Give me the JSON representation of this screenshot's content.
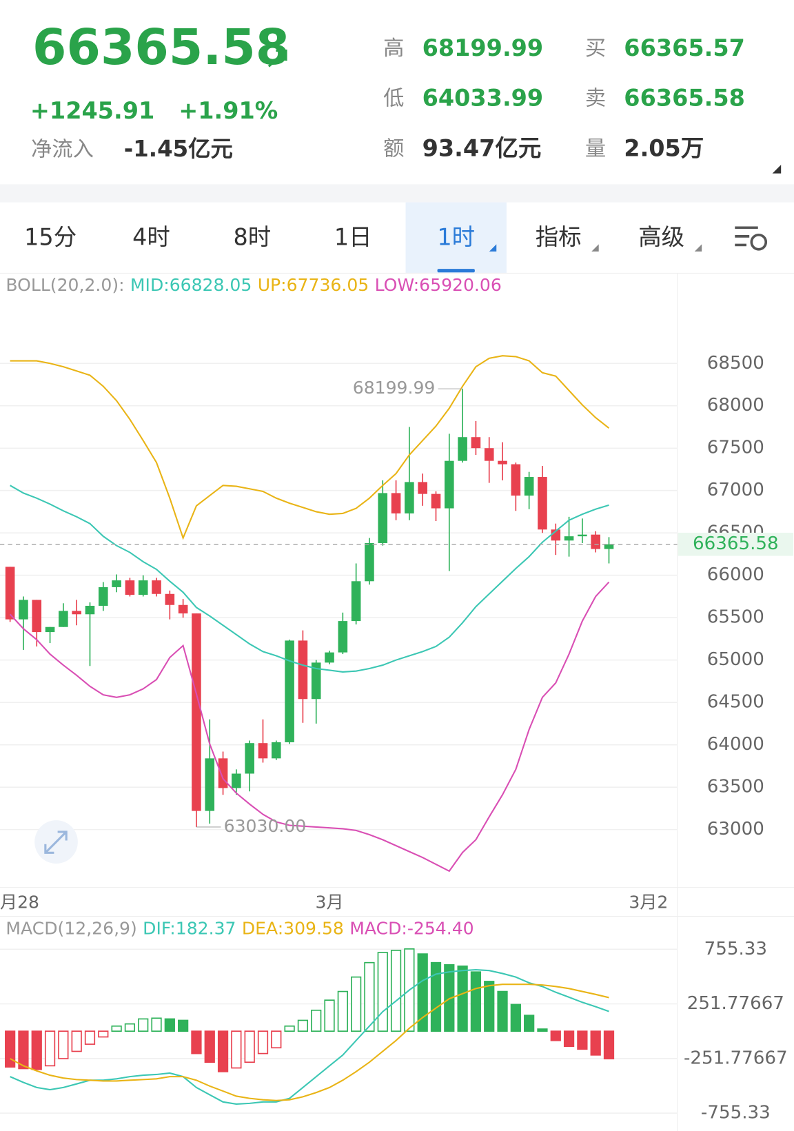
{
  "header": {
    "price": "66365.58",
    "change": "+1245.91",
    "change_pct": "+1.91%",
    "net_inflow_label": "净流入",
    "net_inflow": "-1.45亿元"
  },
  "stats": [
    {
      "label": "高",
      "value": "68199.99"
    },
    {
      "label": "买",
      "value": "66365.57"
    },
    {
      "label": "低",
      "value": "64033.99"
    },
    {
      "label": "卖",
      "value": "66365.58"
    },
    {
      "label": "额",
      "value": "93.47亿元"
    },
    {
      "label": "量",
      "value": "2.05万"
    }
  ],
  "tabs": [
    "15分",
    "4时",
    "8时",
    "1日",
    "1时",
    "指标",
    "高级"
  ],
  "active_tab": 4,
  "chart_data": [
    {
      "type": "candlestick",
      "legend_title": "BOLL(20,2.0):",
      "open": [
        66100,
        65480,
        65710,
        65330,
        65390,
        65580,
        65540,
        65640,
        65860,
        65940,
        65770,
        65940,
        65780,
        65650,
        65550,
        63220,
        63840,
        63490,
        63660,
        64020,
        63840,
        64030,
        65230,
        64540,
        64970,
        65090,
        65460,
        65930,
        66380,
        66970,
        66730,
        67100,
        66960,
        66790,
        67350,
        67630,
        67500,
        67350,
        67310,
        66940,
        67160,
        66540,
        66410,
        66460,
        66480,
        66310
      ],
      "high": [
        66100,
        65750,
        65710,
        65390,
        65670,
        65710,
        65680,
        65920,
        66010,
        65970,
        66000,
        65970,
        65820,
        65720,
        65550,
        64300,
        63920,
        63710,
        64050,
        64300,
        64050,
        65240,
        65350,
        65000,
        65110,
        65560,
        66140,
        66440,
        67120,
        67120,
        67750,
        67200,
        66990,
        67670,
        68199.99,
        67820,
        67630,
        67570,
        67330,
        67220,
        67290,
        66610,
        66690,
        66670,
        66520,
        66450
      ],
      "low": [
        65450,
        65120,
        65160,
        65200,
        65390,
        65410,
        64930,
        65580,
        65800,
        65750,
        65750,
        65750,
        65480,
        65500,
        63030,
        63070,
        63410,
        63410,
        63450,
        63790,
        63820,
        64010,
        64260,
        64250,
        64950,
        65070,
        65420,
        65890,
        66350,
        66650,
        66650,
        66820,
        66640,
        66050,
        67330,
        67420,
        67090,
        67120,
        66760,
        66780,
        66500,
        66240,
        66220,
        66380,
        66270,
        66140
      ],
      "close": [
        65480,
        65710,
        65330,
        65390,
        65580,
        65540,
        65640,
        65860,
        65940,
        65770,
        65940,
        65780,
        65650,
        65550,
        63220,
        63840,
        63490,
        63660,
        64020,
        63840,
        64030,
        65230,
        64540,
        64970,
        65090,
        65460,
        65930,
        66380,
        66970,
        66730,
        67100,
        66960,
        66790,
        67350,
        67630,
        67500,
        67350,
        67310,
        66940,
        67160,
        66540,
        66410,
        66460,
        66480,
        66310,
        66365.58
      ],
      "up_color": "#2fb25a",
      "down_color": "#e8414f",
      "series": [
        {
          "name": "MID:66828.05",
          "color": "#3cc7b4",
          "values": [
            67060,
            66970,
            66910,
            66840,
            66760,
            66690,
            66610,
            66460,
            66350,
            66270,
            66160,
            66070,
            65930,
            65800,
            65620,
            65520,
            65410,
            65300,
            65190,
            65100,
            65050,
            64990,
            64940,
            64900,
            64880,
            64860,
            64870,
            64900,
            64940,
            65000,
            65050,
            65100,
            65160,
            65270,
            65440,
            65630,
            65780,
            65930,
            66080,
            66220,
            66390,
            66520,
            66650,
            66720,
            66780,
            66828.05
          ]
        },
        {
          "name": "UP:67736.05",
          "color": "#e9b416",
          "values": [
            68530,
            68530,
            68530,
            68500,
            68460,
            68410,
            68360,
            68230,
            68060,
            67840,
            67590,
            67330,
            66910,
            66440,
            66820,
            66940,
            67060,
            67050,
            67020,
            66990,
            66910,
            66850,
            66800,
            66750,
            66720,
            66730,
            66790,
            66910,
            67060,
            67200,
            67420,
            67590,
            67760,
            67970,
            68230,
            68460,
            68560,
            68590,
            68580,
            68530,
            68390,
            68350,
            68180,
            68010,
            67860,
            67736.05
          ]
        },
        {
          "name": "LOW:65920.06",
          "color": "#d94fb4",
          "values": [
            65540,
            65370,
            65240,
            65070,
            64940,
            64820,
            64690,
            64590,
            64560,
            64590,
            64660,
            64770,
            65030,
            65170,
            64600,
            64010,
            63600,
            63430,
            63300,
            63180,
            63090,
            63050,
            63040,
            63030,
            63020,
            63010,
            62990,
            62940,
            62880,
            62810,
            62740,
            62670,
            62590,
            62510,
            62730,
            62880,
            63150,
            63410,
            63710,
            64180,
            64560,
            64730,
            65070,
            65460,
            65750,
            65920.06
          ]
        }
      ],
      "annotations": [
        "68199.99",
        "63030.00"
      ],
      "xlabels": [
        "月28",
        "3月",
        "3月2"
      ],
      "ylim": [
        62300,
        69300
      ],
      "yticks": [
        63000,
        63500,
        64000,
        64500,
        65000,
        65500,
        66000,
        66500,
        67000,
        67500,
        68000,
        68500
      ],
      "grid": true
    },
    {
      "type": "macd",
      "legend_title": "MACD(12,26,9)",
      "name": "MACD:-254.40",
      "name_color": "#d94fb4",
      "values": [
        -330,
        -345,
        -353,
        -319,
        -253,
        -186,
        -120,
        -53,
        47,
        67,
        113,
        120,
        113,
        100,
        -206,
        -286,
        -373,
        -339,
        -286,
        -206,
        -153,
        47,
        100,
        193,
        286,
        366,
        499,
        632,
        725,
        745,
        758,
        712,
        632,
        612,
        600,
        546,
        459,
        366,
        246,
        146,
        20,
        -86,
        -140,
        -166,
        -220,
        -254.4
      ],
      "up_color": "#2fb25a",
      "down_color": "#e8414f",
      "series": [
        {
          "name": "DIF:182.37",
          "color": "#3cc7b4",
          "values": [
            -419,
            -472,
            -519,
            -539,
            -519,
            -486,
            -452,
            -452,
            -439,
            -419,
            -406,
            -399,
            -386,
            -419,
            -519,
            -586,
            -652,
            -672,
            -665,
            -652,
            -652,
            -619,
            -519,
            -419,
            -319,
            -220,
            -86,
            47,
            180,
            279,
            379,
            466,
            526,
            546,
            559,
            566,
            559,
            532,
            499,
            446,
            412,
            359,
            313,
            266,
            226,
            182.37
          ]
        },
        {
          "name": "DEA:309.58",
          "color": "#e9b416",
          "values": [
            -253,
            -319,
            -366,
            -406,
            -432,
            -446,
            -452,
            -459,
            -459,
            -452,
            -446,
            -439,
            -419,
            -419,
            -452,
            -506,
            -552,
            -599,
            -619,
            -632,
            -639,
            -632,
            -605,
            -566,
            -519,
            -452,
            -373,
            -286,
            -186,
            -86,
            27,
            126,
            213,
            299,
            346,
            393,
            419,
            432,
            432,
            432,
            426,
            412,
            393,
            366,
            339,
            309.58
          ]
        }
      ],
      "ylim": [
        -920,
        1045
      ],
      "yticks": [
        -755.33,
        -251.77667,
        251.77667,
        755.33
      ],
      "grid": true
    }
  ]
}
